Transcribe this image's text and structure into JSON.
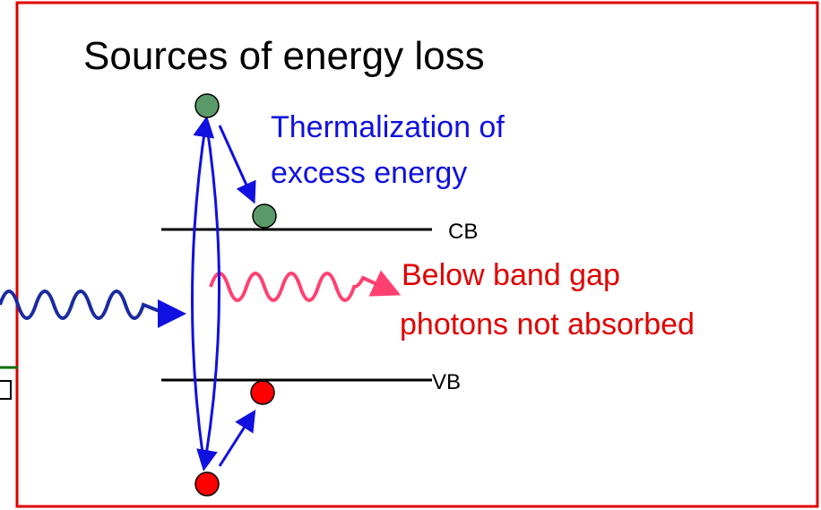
{
  "title": "Sources of energy loss",
  "thermalization": [
    "Thermalization of",
    "excess energy"
  ],
  "cb_label": "CB",
  "vb_label": "VB",
  "below_gap": [
    "Below band gap",
    "photons not absorbed"
  ]
}
